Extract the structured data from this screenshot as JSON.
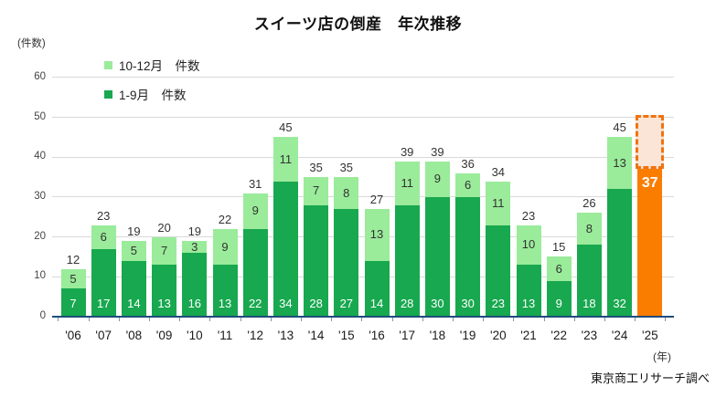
{
  "title": "スイーツ店の倒産　年次推移",
  "y_axis_unit": "(件数)",
  "x_axis_unit": "(年)",
  "source": "東京商工リサーチ調べ",
  "legend": [
    {
      "label": "10-12月　件数",
      "color": "#9aeb9a"
    },
    {
      "label": "1-9月　件数",
      "color": "#18a84f"
    }
  ],
  "colors": {
    "dark_green": "#18a84f",
    "light_green": "#9aeb9a",
    "highlight_orange": "#fa7d00",
    "projection_fill": "#fbe5d6",
    "projection_border": "#ee7411",
    "axis_line": "#1f4d7a",
    "gridline": "#d9d9d9"
  },
  "chart_data": {
    "type": "bar",
    "stacked": true,
    "title": "スイーツ店の倒産　年次推移",
    "ylabel": "(件数)",
    "xlabel": "(年)",
    "ylim": [
      0,
      60
    ],
    "yticks": [
      0,
      10,
      20,
      30,
      40,
      50,
      60
    ],
    "grid": true,
    "legend_position": "top-left-inside",
    "categories": [
      "'06",
      "'07",
      "'08",
      "'09",
      "'10",
      "'11",
      "'12",
      "'13",
      "'14",
      "'15",
      "'16",
      "'17",
      "'18",
      "'19",
      "'20",
      "'21",
      "'22",
      "'23",
      "'24",
      "'25"
    ],
    "series": [
      {
        "name": "1-9月　件数",
        "color": "#18a84f",
        "values": [
          7,
          17,
          14,
          13,
          16,
          13,
          22,
          34,
          28,
          27,
          14,
          28,
          30,
          30,
          23,
          13,
          9,
          18,
          32,
          null
        ]
      },
      {
        "name": "10-12月　件数",
        "color": "#9aeb9a",
        "values": [
          5,
          6,
          5,
          7,
          3,
          9,
          9,
          11,
          7,
          8,
          13,
          11,
          9,
          6,
          11,
          10,
          6,
          8,
          13,
          null
        ]
      }
    ],
    "totals": [
      12,
      23,
      19,
      20,
      19,
      22,
      31,
      45,
      35,
      35,
      27,
      39,
      39,
      36,
      34,
      23,
      15,
      26,
      45,
      37
    ],
    "highlight": {
      "category": "'25",
      "value": 37,
      "bar_color": "#fa7d00",
      "label_color": "#ffffff",
      "projection_top_value": 50.5,
      "projection_fill": "#fbe5d6",
      "projection_border": "#ee7411"
    }
  }
}
